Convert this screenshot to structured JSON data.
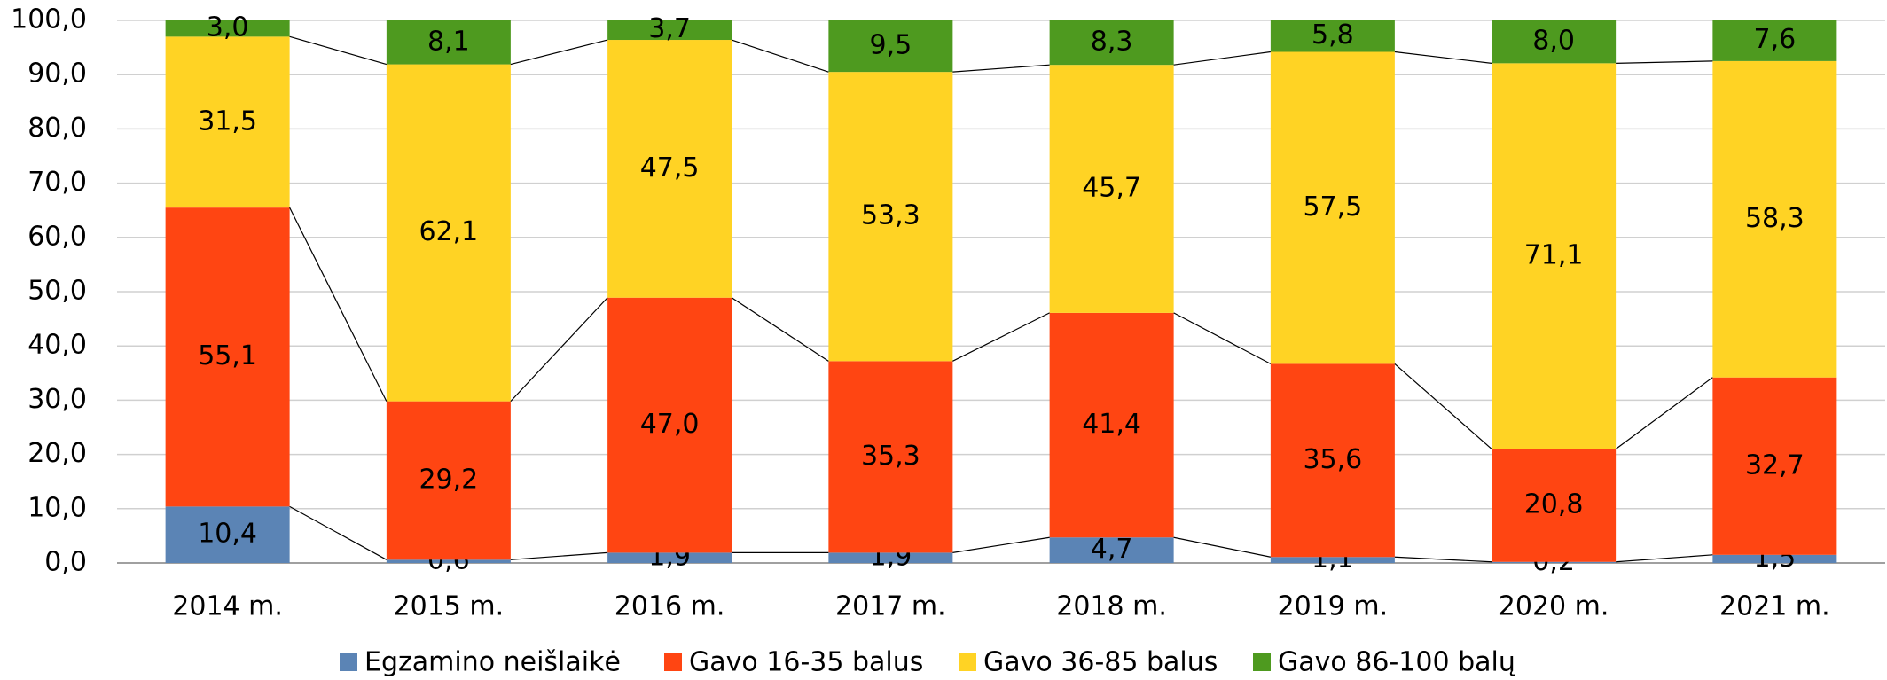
{
  "chart_data": {
    "type": "stacked_bar",
    "categories": [
      "2014 m.",
      "2015 m.",
      "2016 m.",
      "2017 m.",
      "2018 m.",
      "2019 m.",
      "2020 m.",
      "2021 m."
    ],
    "series": [
      {
        "name": "Egzamino neišlaikė",
        "color": "#5b84b5",
        "values": [
          10.4,
          0.6,
          1.9,
          1.9,
          4.7,
          1.1,
          0.2,
          1.5
        ],
        "value_labels": [
          "10,4",
          "0,6",
          "1,9",
          "1,9",
          "4,7",
          "1,1",
          "0,2",
          "1,5"
        ]
      },
      {
        "name": "Gavo 16-35 balus",
        "color": "#ff4512",
        "values": [
          55.1,
          29.2,
          47.0,
          35.3,
          41.4,
          35.6,
          20.8,
          32.7
        ],
        "value_labels": [
          "55,1",
          "29,2",
          "47,0",
          "35,3",
          "41,4",
          "35,6",
          "20,8",
          "32,7"
        ]
      },
      {
        "name": "Gavo 36-85 balus",
        "color": "#ffd324",
        "values": [
          31.5,
          62.1,
          47.5,
          53.3,
          45.7,
          57.5,
          71.1,
          58.3
        ],
        "value_labels": [
          "31,5",
          "62,1",
          "47,5",
          "53,3",
          "45,7",
          "57,5",
          "71,1",
          "58,3"
        ]
      },
      {
        "name": "Gavo 86-100 balų",
        "color": "#4e9a1f",
        "values": [
          3.0,
          8.1,
          3.7,
          9.5,
          8.3,
          5.8,
          8.0,
          7.6
        ],
        "value_labels": [
          "3,0",
          "8,1",
          "3,7",
          "9,5",
          "8,3",
          "5,8",
          "8,0",
          "7,6"
        ]
      }
    ],
    "ylim": [
      0,
      100
    ],
    "yticks": [
      {
        "value": 0,
        "label": "0,0"
      },
      {
        "value": 10,
        "label": "10,0"
      },
      {
        "value": 20,
        "label": "20,0"
      },
      {
        "value": 30,
        "label": "30,0"
      },
      {
        "value": 40,
        "label": "40,0"
      },
      {
        "value": 50,
        "label": "50,0"
      },
      {
        "value": 60,
        "label": "60,0"
      },
      {
        "value": 70,
        "label": "70,0"
      },
      {
        "value": 80,
        "label": "80,0"
      },
      {
        "value": 90,
        "label": "90,0"
      },
      {
        "value": 100,
        "label": "100,0"
      }
    ],
    "grid": true,
    "legend": "bottom"
  }
}
